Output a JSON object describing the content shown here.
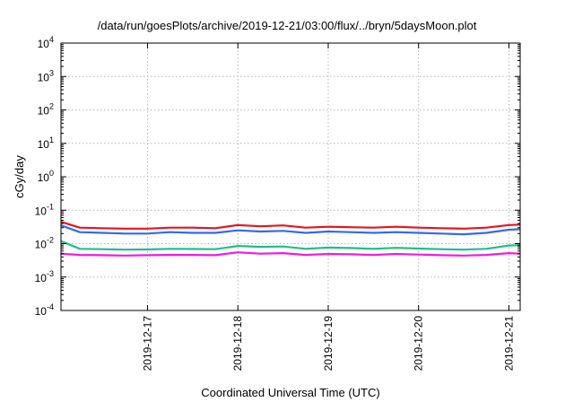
{
  "chart_data": {
    "type": "line",
    "title": "/data/run/goesPlots/archive/2019-12-21/03:00/flux/../bryn/5daysMoon.plot",
    "xlabel": "Coordinated Universal Time (UTC)",
    "ylabel": "cGy/day",
    "y_scale": "log",
    "ylim": [
      0.0001,
      10000
    ],
    "xlim": [
      "2019-12-16T01:00",
      "2019-12-21T03:00"
    ],
    "x_ticks": [
      "2019-12-17",
      "2019-12-18",
      "2019-12-19",
      "2019-12-20",
      "2019-12-21"
    ],
    "y_ticks": [
      {
        "base": "10",
        "exp": "-4"
      },
      {
        "base": "10",
        "exp": "-3"
      },
      {
        "base": "10",
        "exp": "-2"
      },
      {
        "base": "10",
        "exp": "-1"
      },
      {
        "base": "10",
        "exp": "0"
      },
      {
        "base": "10",
        "exp": "1"
      },
      {
        "base": "10",
        "exp": "2"
      },
      {
        "base": "10",
        "exp": "3"
      },
      {
        "base": "10",
        "exp": "4"
      }
    ],
    "grid": true,
    "legend": "none",
    "series": [
      {
        "color": "#e8141c",
        "x": [
          "2019-12-16T01:00",
          "2019-12-16T06:00",
          "2019-12-16T12:00",
          "2019-12-16T18:00",
          "2019-12-17T00:00",
          "2019-12-17T06:00",
          "2019-12-17T12:00",
          "2019-12-17T18:00",
          "2019-12-18T00:00",
          "2019-12-18T06:00",
          "2019-12-18T12:00",
          "2019-12-18T18:00",
          "2019-12-19T00:00",
          "2019-12-19T06:00",
          "2019-12-19T12:00",
          "2019-12-19T18:00",
          "2019-12-20T00:00",
          "2019-12-20T06:00",
          "2019-12-20T12:00",
          "2019-12-20T18:00",
          "2019-12-21T00:00",
          "2019-12-21T03:00"
        ],
        "values": [
          0.045,
          0.03,
          0.029,
          0.028,
          0.028,
          0.03,
          0.03,
          0.029,
          0.036,
          0.033,
          0.035,
          0.03,
          0.032,
          0.031,
          0.03,
          0.032,
          0.03,
          0.029,
          0.028,
          0.03,
          0.036,
          0.037
        ]
      },
      {
        "color": "#2e6bf0",
        "x": [
          "2019-12-16T01:00",
          "2019-12-16T06:00",
          "2019-12-16T12:00",
          "2019-12-16T18:00",
          "2019-12-17T00:00",
          "2019-12-17T06:00",
          "2019-12-17T12:00",
          "2019-12-17T18:00",
          "2019-12-18T00:00",
          "2019-12-18T06:00",
          "2019-12-18T12:00",
          "2019-12-18T18:00",
          "2019-12-19T00:00",
          "2019-12-19T06:00",
          "2019-12-19T12:00",
          "2019-12-19T18:00",
          "2019-12-20T00:00",
          "2019-12-20T06:00",
          "2019-12-20T12:00",
          "2019-12-20T18:00",
          "2019-12-21T00:00",
          "2019-12-21T03:00"
        ],
        "values": [
          0.035,
          0.022,
          0.021,
          0.02,
          0.02,
          0.022,
          0.021,
          0.021,
          0.025,
          0.023,
          0.024,
          0.021,
          0.023,
          0.022,
          0.021,
          0.022,
          0.021,
          0.02,
          0.019,
          0.021,
          0.026,
          0.027
        ]
      },
      {
        "color": "#1fbf8a",
        "x": [
          "2019-12-16T01:00",
          "2019-12-16T06:00",
          "2019-12-16T12:00",
          "2019-12-16T18:00",
          "2019-12-17T00:00",
          "2019-12-17T06:00",
          "2019-12-17T12:00",
          "2019-12-17T18:00",
          "2019-12-18T00:00",
          "2019-12-18T06:00",
          "2019-12-18T12:00",
          "2019-12-18T18:00",
          "2019-12-19T00:00",
          "2019-12-19T06:00",
          "2019-12-19T12:00",
          "2019-12-19T18:00",
          "2019-12-20T00:00",
          "2019-12-20T06:00",
          "2019-12-20T12:00",
          "2019-12-20T18:00",
          "2019-12-21T00:00",
          "2019-12-21T03:00"
        ],
        "values": [
          0.012,
          0.007,
          0.0068,
          0.0066,
          0.0067,
          0.007,
          0.0069,
          0.0068,
          0.0085,
          0.008,
          0.0082,
          0.007,
          0.0076,
          0.0074,
          0.007,
          0.0075,
          0.0071,
          0.0068,
          0.0066,
          0.007,
          0.0088,
          0.009
        ]
      },
      {
        "color": "#f21ce0",
        "x": [
          "2019-12-16T01:00",
          "2019-12-16T06:00",
          "2019-12-16T12:00",
          "2019-12-16T18:00",
          "2019-12-17T00:00",
          "2019-12-17T06:00",
          "2019-12-17T12:00",
          "2019-12-17T18:00",
          "2019-12-18T00:00",
          "2019-12-18T06:00",
          "2019-12-18T12:00",
          "2019-12-18T18:00",
          "2019-12-19T00:00",
          "2019-12-19T06:00",
          "2019-12-19T12:00",
          "2019-12-19T18:00",
          "2019-12-20T00:00",
          "2019-12-20T06:00",
          "2019-12-20T12:00",
          "2019-12-20T18:00",
          "2019-12-21T00:00",
          "2019-12-21T03:00"
        ],
        "values": [
          0.005,
          0.0046,
          0.0045,
          0.0044,
          0.0045,
          0.0046,
          0.0046,
          0.0045,
          0.0055,
          0.005,
          0.0052,
          0.0046,
          0.0049,
          0.0048,
          0.0046,
          0.0049,
          0.0047,
          0.0045,
          0.0044,
          0.0046,
          0.0052,
          0.005
        ]
      }
    ]
  }
}
